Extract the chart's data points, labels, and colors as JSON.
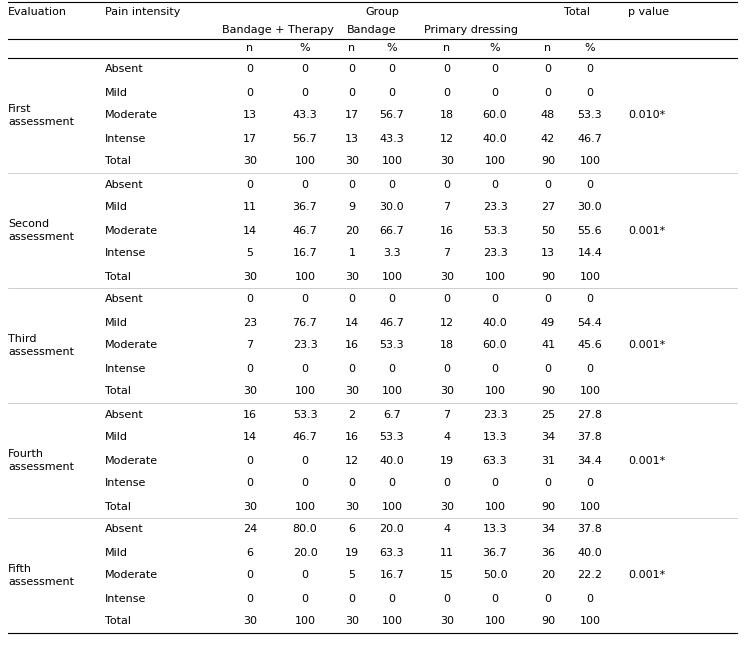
{
  "col_headers_row1": [
    "Evaluation",
    "Pain intensity",
    "",
    "",
    "Group",
    "",
    "",
    "",
    "Total",
    "",
    "p value"
  ],
  "col_headers_row2": [
    "",
    "",
    "Bandage + Therapy",
    "",
    "Bandage",
    "",
    "Primary dressing",
    "",
    "",
    "",
    ""
  ],
  "col_headers_row3": [
    "",
    "",
    "n",
    "%",
    "n",
    "%",
    "n",
    "%",
    "n",
    "%",
    ""
  ],
  "rows": [
    {
      "eval": "First\nassessment",
      "pain": "Absent",
      "bt_n": "0",
      "bt_p": "0",
      "b_n": "0",
      "b_p": "0",
      "pd_n": "0",
      "pd_p": "0",
      "t_n": "0",
      "t_p": "0"
    },
    {
      "eval": "",
      "pain": "Mild",
      "bt_n": "0",
      "bt_p": "0",
      "b_n": "0",
      "b_p": "0",
      "pd_n": "0",
      "pd_p": "0",
      "t_n": "0",
      "t_p": "0"
    },
    {
      "eval": "",
      "pain": "Moderate",
      "bt_n": "13",
      "bt_p": "43.3",
      "b_n": "17",
      "b_p": "56.7",
      "pd_n": "18",
      "pd_p": "60.0",
      "t_n": "48",
      "t_p": "53.3"
    },
    {
      "eval": "",
      "pain": "Intense",
      "bt_n": "17",
      "bt_p": "56.7",
      "b_n": "13",
      "b_p": "43.3",
      "pd_n": "12",
      "pd_p": "40.0",
      "t_n": "42",
      "t_p": "46.7"
    },
    {
      "eval": "",
      "pain": "Total",
      "bt_n": "30",
      "bt_p": "100",
      "b_n": "30",
      "b_p": "100",
      "pd_n": "30",
      "pd_p": "100",
      "t_n": "90",
      "t_p": "100"
    },
    {
      "eval": "Second\nassessment",
      "pain": "Absent",
      "bt_n": "0",
      "bt_p": "0",
      "b_n": "0",
      "b_p": "0",
      "pd_n": "0",
      "pd_p": "0",
      "t_n": "0",
      "t_p": "0"
    },
    {
      "eval": "",
      "pain": "Mild",
      "bt_n": "11",
      "bt_p": "36.7",
      "b_n": "9",
      "b_p": "30.0",
      "pd_n": "7",
      "pd_p": "23.3",
      "t_n": "27",
      "t_p": "30.0"
    },
    {
      "eval": "",
      "pain": "Moderate",
      "bt_n": "14",
      "bt_p": "46.7",
      "b_n": "20",
      "b_p": "66.7",
      "pd_n": "16",
      "pd_p": "53.3",
      "t_n": "50",
      "t_p": "55.6"
    },
    {
      "eval": "",
      "pain": "Intense",
      "bt_n": "5",
      "bt_p": "16.7",
      "b_n": "1",
      "b_p": "3.3",
      "pd_n": "7",
      "pd_p": "23.3",
      "t_n": "13",
      "t_p": "14.4"
    },
    {
      "eval": "",
      "pain": "Total",
      "bt_n": "30",
      "bt_p": "100",
      "b_n": "30",
      "b_p": "100",
      "pd_n": "30",
      "pd_p": "100",
      "t_n": "90",
      "t_p": "100"
    },
    {
      "eval": "Third\nassessment",
      "pain": "Absent",
      "bt_n": "0",
      "bt_p": "0",
      "b_n": "0",
      "b_p": "0",
      "pd_n": "0",
      "pd_p": "0",
      "t_n": "0",
      "t_p": "0"
    },
    {
      "eval": "",
      "pain": "Mild",
      "bt_n": "23",
      "bt_p": "76.7",
      "b_n": "14",
      "b_p": "46.7",
      "pd_n": "12",
      "pd_p": "40.0",
      "t_n": "49",
      "t_p": "54.4"
    },
    {
      "eval": "",
      "pain": "Moderate",
      "bt_n": "7",
      "bt_p": "23.3",
      "b_n": "16",
      "b_p": "53.3",
      "pd_n": "18",
      "pd_p": "60.0",
      "t_n": "41",
      "t_p": "45.6"
    },
    {
      "eval": "",
      "pain": "Intense",
      "bt_n": "0",
      "bt_p": "0",
      "b_n": "0",
      "b_p": "0",
      "pd_n": "0",
      "pd_p": "0",
      "t_n": "0",
      "t_p": "0"
    },
    {
      "eval": "",
      "pain": "Total",
      "bt_n": "30",
      "bt_p": "100",
      "b_n": "30",
      "b_p": "100",
      "pd_n": "30",
      "pd_p": "100",
      "t_n": "90",
      "t_p": "100"
    },
    {
      "eval": "Fourth\nassessment",
      "pain": "Absent",
      "bt_n": "16",
      "bt_p": "53.3",
      "b_n": "2",
      "b_p": "6.7",
      "pd_n": "7",
      "pd_p": "23.3",
      "t_n": "25",
      "t_p": "27.8"
    },
    {
      "eval": "",
      "pain": "Mild",
      "bt_n": "14",
      "bt_p": "46.7",
      "b_n": "16",
      "b_p": "53.3",
      "pd_n": "4",
      "pd_p": "13.3",
      "t_n": "34",
      "t_p": "37.8"
    },
    {
      "eval": "",
      "pain": "Moderate",
      "bt_n": "0",
      "bt_p": "0",
      "b_n": "12",
      "b_p": "40.0",
      "pd_n": "19",
      "pd_p": "63.3",
      "t_n": "31",
      "t_p": "34.4"
    },
    {
      "eval": "",
      "pain": "Intense",
      "bt_n": "0",
      "bt_p": "0",
      "b_n": "0",
      "b_p": "0",
      "pd_n": "0",
      "pd_p": "0",
      "t_n": "0",
      "t_p": "0"
    },
    {
      "eval": "",
      "pain": "Total",
      "bt_n": "30",
      "bt_p": "100",
      "b_n": "30",
      "b_p": "100",
      "pd_n": "30",
      "pd_p": "100",
      "t_n": "90",
      "t_p": "100"
    },
    {
      "eval": "Fifth\nassessment",
      "pain": "Absent",
      "bt_n": "24",
      "bt_p": "80.0",
      "b_n": "6",
      "b_p": "20.0",
      "pd_n": "4",
      "pd_p": "13.3",
      "t_n": "34",
      "t_p": "37.8"
    },
    {
      "eval": "",
      "pain": "Mild",
      "bt_n": "6",
      "bt_p": "20.0",
      "b_n": "19",
      "b_p": "63.3",
      "pd_n": "11",
      "pd_p": "36.7",
      "t_n": "36",
      "t_p": "40.0"
    },
    {
      "eval": "",
      "pain": "Moderate",
      "bt_n": "0",
      "bt_p": "0",
      "b_n": "5",
      "b_p": "16.7",
      "pd_n": "15",
      "pd_p": "50.0",
      "t_n": "20",
      "t_p": "22.2"
    },
    {
      "eval": "",
      "pain": "Intense",
      "bt_n": "0",
      "bt_p": "0",
      "b_n": "0",
      "b_p": "0",
      "pd_n": "0",
      "pd_p": "0",
      "t_n": "0",
      "t_p": "0"
    },
    {
      "eval": "",
      "pain": "Total",
      "bt_n": "30",
      "bt_p": "100",
      "b_n": "30",
      "b_p": "100",
      "pd_n": "30",
      "pd_p": "100",
      "t_n": "90",
      "t_p": "100"
    }
  ],
  "pval_labels": [
    "0.010*",
    "0.001*",
    "0.001*",
    "0.001*",
    "0.001*"
  ],
  "eval_labels": [
    "First\nassessment",
    "Second\nassessment",
    "Third\nassessment",
    "Fourth\nassessment",
    "Fifth\nassessment"
  ],
  "font_size": 8.0,
  "bg_color": "#ffffff",
  "line_color": "#000000"
}
